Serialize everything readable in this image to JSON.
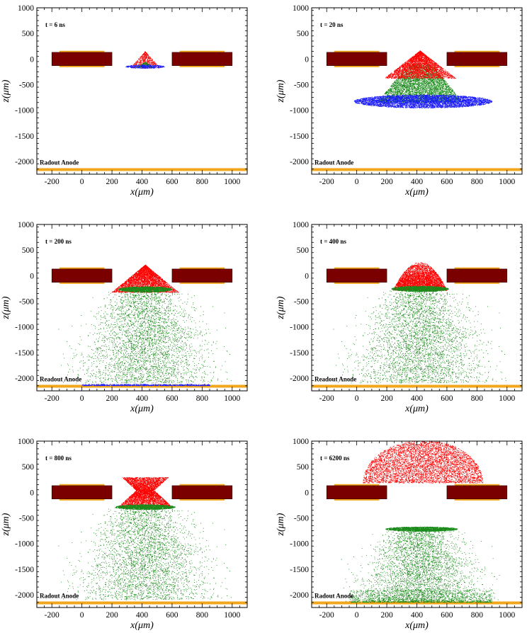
{
  "figure": {
    "xlabel": "x(μm)",
    "ylabel": "z(μm)",
    "xlim": [
      -300,
      1100
    ],
    "ylim": [
      -2250,
      1000
    ],
    "xticks": [
      -200,
      0,
      200,
      400,
      600,
      800,
      1000
    ],
    "yticks": [
      1000,
      500,
      0,
      -500,
      -1000,
      -1500,
      -2000
    ],
    "colors": {
      "electrode": "#7a0000",
      "electrode_border": "#3a0000",
      "copper": "#f2a61c",
      "anode": "#f2a61c",
      "red": "#ff0000",
      "green": "#1a8a1a",
      "blue": "#1a1aff"
    }
  },
  "chart_data": [
    {
      "type": "scatter",
      "panel_label": "t = 6 ns",
      "anode_label": "Radout Anode",
      "structures": {
        "electrodes": [
          [
            -200,
            200
          ],
          [
            600,
            1000
          ]
        ],
        "electrode_z": [
          -130,
          130
        ],
        "copper_x": [
          [
            -150,
            150
          ],
          [
            650,
            950
          ]
        ],
        "copper_z": [
          [
            130,
            160
          ],
          [
            -160,
            -130
          ]
        ],
        "anode_z": -2160
      },
      "series": [
        {
          "color": "red",
          "count": 600,
          "shape": "cone",
          "x_range": [
            320,
            520
          ],
          "z_range": [
            -180,
            150
          ],
          "apex_x": 420
        },
        {
          "color": "green",
          "count": 200,
          "shape": "cone",
          "x_range": [
            360,
            480
          ],
          "z_range": [
            -170,
            -60
          ],
          "apex_x": 420
        },
        {
          "color": "blue",
          "count": 400,
          "shape": "ellipse",
          "center": [
            420,
            -150
          ],
          "radius": [
            130,
            35
          ]
        }
      ]
    },
    {
      "type": "scatter",
      "panel_label": "t = 20 ns",
      "anode_label": "Radout Anode",
      "structures": {
        "electrodes": [
          [
            -200,
            200
          ],
          [
            600,
            1000
          ]
        ],
        "electrode_z": [
          -130,
          130
        ],
        "copper_x": [
          [
            -150,
            150
          ],
          [
            650,
            950
          ]
        ],
        "copper_z": [
          [
            130,
            160
          ],
          [
            -160,
            -130
          ]
        ],
        "anode_z": -2160
      },
      "series": [
        {
          "color": "green",
          "count": 4500,
          "shape": "cone_down",
          "x_range": [
            130,
            700
          ],
          "z_range": [
            -850,
            -80
          ],
          "apex_x": 420
        },
        {
          "color": "blue",
          "count": 6000,
          "shape": "ellipse",
          "center": [
            440,
            -830
          ],
          "radius": [
            460,
            130
          ]
        },
        {
          "color": "red",
          "count": 3500,
          "shape": "cone",
          "x_range": [
            170,
            650
          ],
          "z_range": [
            -380,
            160
          ],
          "apex_x": 420
        }
      ]
    },
    {
      "type": "scatter",
      "panel_label": "t = 200 ns",
      "anode_label": "Readout Anode",
      "structures": {
        "electrodes": [
          [
            -200,
            200
          ],
          [
            600,
            1000
          ]
        ],
        "electrode_z": [
          -130,
          130
        ],
        "copper_x": [
          [
            -150,
            150
          ],
          [
            650,
            950
          ]
        ],
        "copper_z": [
          [
            130,
            160
          ],
          [
            -160,
            -130
          ]
        ],
        "anode_z": -2160
      },
      "series": [
        {
          "color": "green",
          "count": 9000,
          "shape": "bell",
          "x_range": [
            -80,
            900
          ],
          "z_range": [
            -2100,
            -300
          ],
          "apex_x": 420
        },
        {
          "color": "blue",
          "count": 900,
          "shape": "band",
          "x_range": [
            0,
            850
          ],
          "z_range": [
            -2150,
            -2120
          ]
        },
        {
          "color": "red",
          "count": 4000,
          "shape": "cone",
          "x_range": [
            190,
            640
          ],
          "z_range": [
            -330,
            210
          ],
          "apex_x": 420
        },
        {
          "color": "green",
          "count": 1800,
          "shape": "ellipse",
          "center": [
            420,
            -270
          ],
          "radius": [
            180,
            55
          ]
        }
      ]
    },
    {
      "type": "scatter",
      "panel_label": "t = 400 ns",
      "anode_label": "Readout Anode",
      "structures": {
        "electrodes": [
          [
            -200,
            200
          ],
          [
            600,
            1000
          ]
        ],
        "electrode_z": [
          -130,
          130
        ],
        "copper_x": [
          [
            -150,
            150
          ],
          [
            650,
            950
          ]
        ],
        "copper_z": [
          [
            130,
            160
          ],
          [
            -160,
            -130
          ]
        ],
        "anode_z": -2160
      },
      "series": [
        {
          "color": "green",
          "count": 9000,
          "shape": "bell",
          "x_range": [
            -80,
            900
          ],
          "z_range": [
            -2100,
            -300
          ],
          "apex_x": 420
        },
        {
          "color": "red",
          "count": 4500,
          "shape": "dome",
          "x_range": [
            240,
            600
          ],
          "z_range": [
            -290,
            260
          ],
          "apex_x": 420
        },
        {
          "color": "green",
          "count": 1800,
          "shape": "ellipse",
          "center": [
            420,
            -260
          ],
          "radius": [
            190,
            55
          ]
        }
      ]
    },
    {
      "type": "scatter",
      "panel_label": "t = 800 ns",
      "anode_label": "Radout Anode",
      "structures": {
        "electrodes": [
          [
            -200,
            200
          ],
          [
            600,
            1000
          ]
        ],
        "electrode_z": [
          -130,
          130
        ],
        "copper_x": [
          [
            -150,
            150
          ],
          [
            650,
            950
          ]
        ],
        "copper_z": [
          [
            130,
            160
          ],
          [
            -160,
            -130
          ]
        ],
        "anode_z": -2160
      },
      "series": [
        {
          "color": "green",
          "count": 9000,
          "shape": "bell",
          "x_range": [
            -80,
            900
          ],
          "z_range": [
            -2100,
            -300
          ],
          "apex_x": 420
        },
        {
          "color": "red",
          "count": 4500,
          "shape": "hourglass",
          "x_range": [
            250,
            590
          ],
          "z_range": [
            -300,
            290
          ],
          "apex_x": 420
        },
        {
          "color": "green",
          "count": 1800,
          "shape": "ellipse",
          "center": [
            420,
            -290
          ],
          "radius": [
            200,
            50
          ]
        }
      ]
    },
    {
      "type": "scatter",
      "panel_label": "t = 6200 ns",
      "anode_label": "Radout Anode",
      "structures": {
        "electrodes": [
          [
            -200,
            200
          ],
          [
            600,
            1000
          ]
        ],
        "electrode_z": [
          -130,
          130
        ],
        "copper_x": [
          [
            -150,
            150
          ],
          [
            650,
            950
          ]
        ],
        "copper_z": [
          [
            130,
            160
          ],
          [
            -160,
            -130
          ]
        ],
        "anode_z": -2160
      },
      "series": [
        {
          "color": "red",
          "count": 9000,
          "shape": "half_disc",
          "center": [
            440,
            180
          ],
          "radius": [
            400,
            880
          ]
        },
        {
          "color": "green",
          "count": 7000,
          "shape": "bell",
          "x_range": [
            -30,
            860
          ],
          "z_range": [
            -2140,
            -720
          ],
          "apex_x": 420
        },
        {
          "color": "green",
          "count": 2000,
          "shape": "ellipse",
          "center": [
            430,
            -720
          ],
          "radius": [
            240,
            45
          ]
        },
        {
          "color": "green",
          "count": 1500,
          "shape": "band",
          "x_range": [
            -50,
            900
          ],
          "z_range": [
            -2150,
            -1900
          ]
        }
      ]
    }
  ]
}
